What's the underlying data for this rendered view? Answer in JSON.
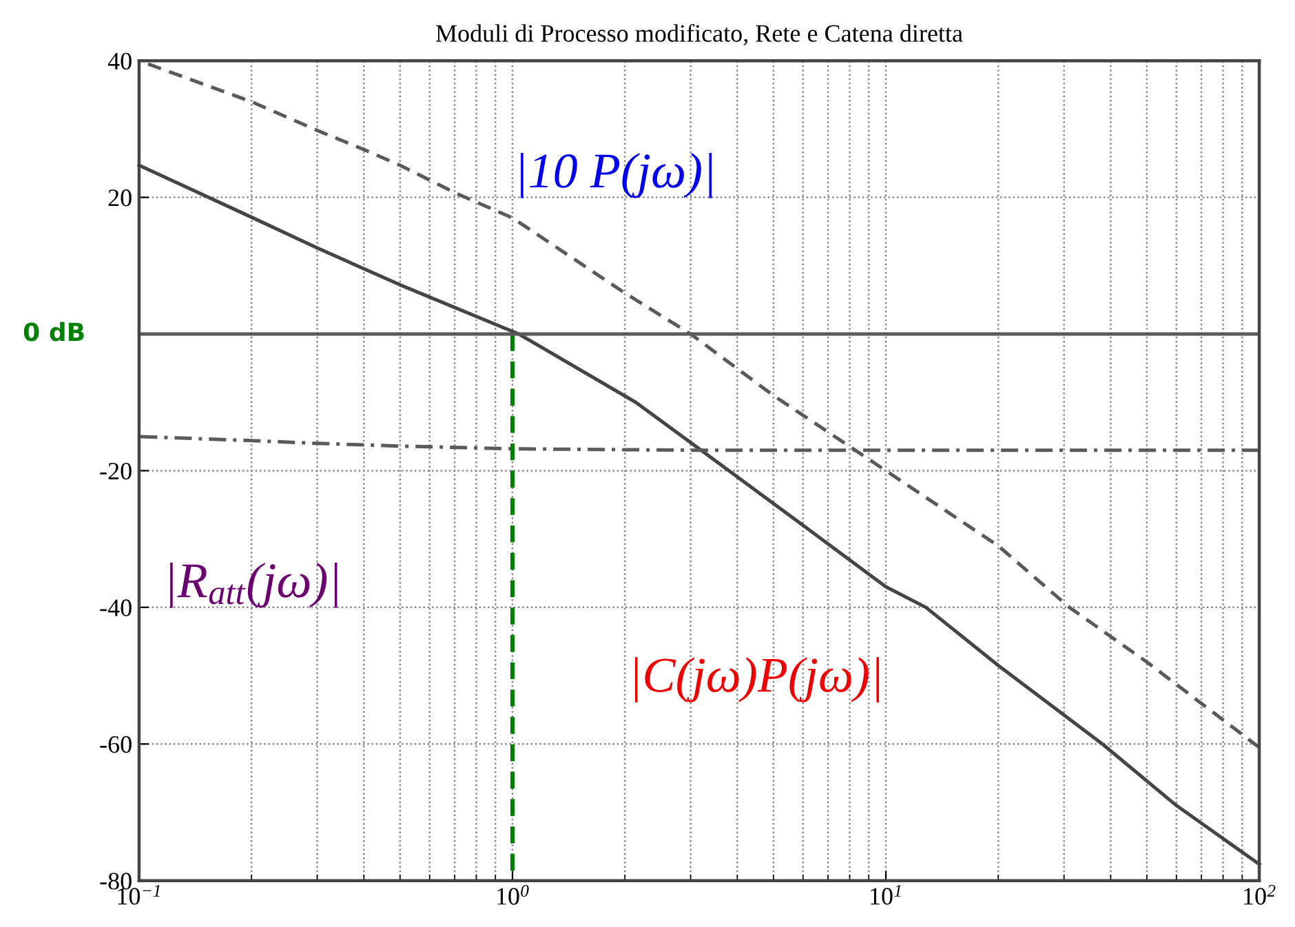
{
  "chart_data": {
    "type": "line",
    "title": "Moduli di Processo modificato, Rete e Catena diretta",
    "log": "x",
    "xlim": [
      0.1,
      100
    ],
    "xticks": [
      {
        "value": 0.1,
        "label": "10$^{−1}$"
      },
      {
        "value": 1,
        "label": "10$^{0}$"
      },
      {
        "value": 10,
        "label": "10$^{1}$"
      },
      {
        "value": 100,
        "label": "10$^{2}$"
      }
    ],
    "ylim": [
      -80,
      40
    ],
    "yticks": [
      40,
      20,
      {
        "value": 0,
        "label": null
      },
      -20,
      -40,
      -60,
      -80
    ],
    "grid": true,
    "series": [
      {
        "color": "#5a5a5a",
        "line_style": "dashed",
        "x": [
          0.1,
          0.2,
          0.3,
          0.4,
          0.5,
          0.7,
          1,
          2,
          3,
          5,
          10,
          20,
          31,
          50,
          100
        ],
        "values": [
          40,
          34,
          29.8,
          27,
          24.7,
          20.7,
          17,
          6,
          0,
          -9,
          -20,
          -31,
          -40,
          -48,
          -60.5
        ]
      },
      {
        "color": "#454545",
        "line_style": "solid",
        "x": [
          0.1,
          0.2,
          0.3,
          0.5,
          1.04,
          2.14,
          3.8,
          6,
          10,
          12.8,
          20,
          38,
          60,
          100
        ],
        "values": [
          24.7,
          17.1,
          12.6,
          7.2,
          0,
          -10,
          -20,
          -28,
          -37,
          -40,
          -48.5,
          -60,
          -69,
          -77.6
        ]
      },
      {
        "color": "#5a5a5a",
        "line_style": "dashdot",
        "x": [
          0.1,
          0.2,
          0.3,
          0.5,
          1,
          3,
          10,
          100
        ],
        "values": [
          -15,
          -15.6,
          -16,
          -16.4,
          -16.8,
          -17,
          -17,
          -17
        ]
      },
      {
        "color": "#008000",
        "line_style": "dashed",
        "x": [
          1,
          1
        ],
        "values": [
          -80,
          0
        ]
      }
    ],
    "ref_lines": [
      {
        "axis": "y",
        "value": 0,
        "label": "0 dB",
        "color": "#5a5a5a"
      }
    ],
    "annotations": [
      "|10 P(jω)|",
      "|R$_{att}$(jω)|",
      "|C(jω)P(jω)|"
    ]
  }
}
